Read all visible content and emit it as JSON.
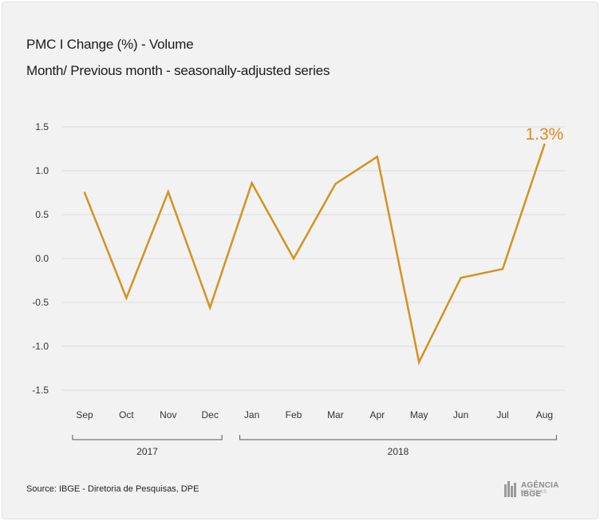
{
  "header": {
    "title": "PMC I Change (%) - Volume",
    "subtitle": "Month/ Previous month - seasonally-adjusted series"
  },
  "chart_data": {
    "type": "line",
    "categories": [
      "Sep",
      "Oct",
      "Nov",
      "Dec",
      "Jan",
      "Feb",
      "Mar",
      "Apr",
      "May",
      "Jun",
      "Jul",
      "Aug"
    ],
    "series": [
      {
        "values": [
          0.75,
          -0.45,
          0.76,
          -0.56,
          0.86,
          0.0,
          0.85,
          1.16,
          -1.18,
          -0.22,
          -0.12,
          1.3
        ]
      }
    ],
    "ylim": [
      -1.5,
      1.5
    ],
    "yticks": [
      1.5,
      1.0,
      0.5,
      0.0,
      -0.5,
      -1.0,
      -1.5
    ],
    "ytick_labels": [
      "1.5",
      "1.0",
      "0.5",
      "0.0",
      "-0.5",
      "-1.0",
      "-1.5"
    ],
    "grid": true,
    "year_groups": [
      {
        "label": "2017",
        "from": 0,
        "to": 3
      },
      {
        "label": "2018",
        "from": 4,
        "to": 11
      }
    ],
    "annotation": {
      "index": 11,
      "text": "1.3%"
    },
    "colors": {
      "line": "#d4921f",
      "annotation": "#e18a1a",
      "grid": "#dcdcdc",
      "text": "#333333"
    }
  },
  "footer": {
    "source": "Source: IBGE - Diretoria de Pesquisas, DPE",
    "logo_text": "AGÊNCIA IBGE",
    "logo_sub": "NOTÍCIAS"
  }
}
